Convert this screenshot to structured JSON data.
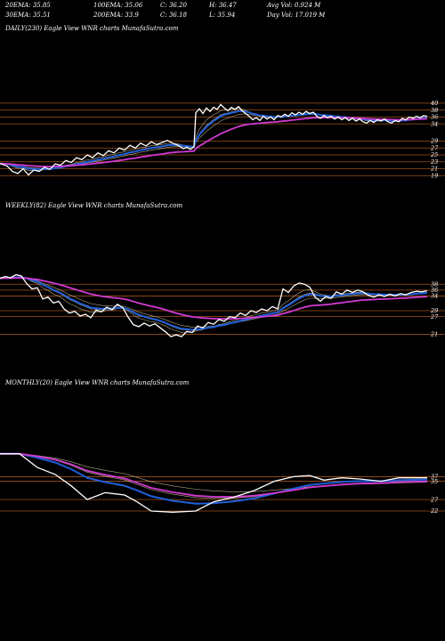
{
  "header": {
    "row1": [
      "20EMA: 35.85",
      "100EMA: 35.06",
      "C: 36.20",
      "H: 36.47",
      "Avg Vol: 0.924  M"
    ],
    "row2": [
      "30EMA: 35.51",
      "200EMA: 33.9",
      "C: 36.18",
      "L: 35.94",
      "Day Vol: 17.019 M"
    ]
  },
  "chart_data": [
    {
      "type": "line",
      "title": "DAILY(230) Eagle   View  WNR charts MunafaSutra.com",
      "y_axis_labels": [
        "40",
        "38",
        "36",
        "34",
        "29",
        "27",
        "25",
        "23",
        "21",
        "19"
      ],
      "ylim": [
        17,
        41
      ],
      "price": [
        [
          0,
          22.5
        ],
        [
          8,
          21.8
        ],
        [
          14,
          20.2
        ],
        [
          20,
          19.6
        ],
        [
          26,
          21.0
        ],
        [
          32,
          19.2
        ],
        [
          38,
          20.6
        ],
        [
          44,
          20.2
        ],
        [
          50,
          21.4
        ],
        [
          56,
          20.8
        ],
        [
          62,
          22.4
        ],
        [
          68,
          22.0
        ],
        [
          74,
          23.4
        ],
        [
          80,
          22.8
        ],
        [
          86,
          24.2
        ],
        [
          92,
          23.6
        ],
        [
          98,
          25.0
        ],
        [
          104,
          24.2
        ],
        [
          110,
          25.6
        ],
        [
          116,
          24.8
        ],
        [
          122,
          26.2
        ],
        [
          128,
          25.6
        ],
        [
          134,
          27.0
        ],
        [
          140,
          26.4
        ],
        [
          146,
          27.8
        ],
        [
          152,
          27.0
        ],
        [
          158,
          28.4
        ],
        [
          164,
          27.6
        ],
        [
          170,
          28.8
        ],
        [
          176,
          28.0
        ],
        [
          182,
          28.6
        ],
        [
          188,
          29.2
        ],
        [
          194,
          28.4
        ],
        [
          200,
          27.8
        ],
        [
          206,
          26.8
        ],
        [
          210,
          27.2
        ],
        [
          214,
          26.6
        ],
        [
          218,
          27.4
        ],
        [
          220,
          37.2
        ],
        [
          224,
          38.4
        ],
        [
          228,
          37.0
        ],
        [
          232,
          38.6
        ],
        [
          236,
          37.6
        ],
        [
          240,
          38.8
        ],
        [
          244,
          38.2
        ],
        [
          248,
          39.6
        ],
        [
          252,
          38.6
        ],
        [
          256,
          37.8
        ],
        [
          260,
          38.8
        ],
        [
          264,
          38.2
        ],
        [
          268,
          39.0
        ],
        [
          272,
          37.8
        ],
        [
          276,
          37.0
        ],
        [
          280,
          36.2
        ],
        [
          284,
          35.2
        ],
        [
          288,
          35.8
        ],
        [
          292,
          35.0
        ],
        [
          296,
          36.2
        ],
        [
          300,
          35.4
        ],
        [
          304,
          36.0
        ],
        [
          308,
          35.2
        ],
        [
          312,
          36.4
        ],
        [
          316,
          36.0
        ],
        [
          320,
          36.8
        ],
        [
          324,
          36.2
        ],
        [
          328,
          37.2
        ],
        [
          332,
          36.6
        ],
        [
          336,
          37.4
        ],
        [
          340,
          36.8
        ],
        [
          344,
          37.6
        ],
        [
          348,
          37.0
        ],
        [
          352,
          37.4
        ],
        [
          356,
          36.2
        ],
        [
          360,
          35.6
        ],
        [
          364,
          36.4
        ],
        [
          368,
          35.8
        ],
        [
          372,
          36.2
        ],
        [
          376,
          35.4
        ],
        [
          380,
          36.0
        ],
        [
          384,
          35.2
        ],
        [
          388,
          35.8
        ],
        [
          392,
          35.0
        ],
        [
          396,
          35.6
        ],
        [
          400,
          34.8
        ],
        [
          404,
          35.4
        ],
        [
          408,
          34.6
        ],
        [
          412,
          34.2
        ],
        [
          416,
          35.0
        ],
        [
          420,
          34.4
        ],
        [
          424,
          35.2
        ],
        [
          428,
          34.8
        ],
        [
          432,
          35.4
        ],
        [
          436,
          34.6
        ],
        [
          440,
          34.2
        ],
        [
          444,
          35.0
        ],
        [
          448,
          34.6
        ],
        [
          452,
          35.6
        ],
        [
          456,
          35.2
        ],
        [
          460,
          36.0
        ],
        [
          464,
          35.6
        ],
        [
          468,
          36.2
        ],
        [
          472,
          35.8
        ],
        [
          476,
          36.4
        ],
        [
          480,
          36.2
        ]
      ]
    },
    {
      "type": "line",
      "title": "WEEKLY(82) Eagle   View  WNR charts MunafaSutra.com",
      "y_axis_labels": [
        "38",
        "36",
        "34",
        "29",
        "27",
        "21"
      ],
      "ylim": [
        16,
        42
      ],
      "price": [
        [
          0,
          40.0
        ],
        [
          6,
          40.6
        ],
        [
          12,
          40.2
        ],
        [
          18,
          41.2
        ],
        [
          24,
          40.8
        ],
        [
          30,
          38.2
        ],
        [
          36,
          36.4
        ],
        [
          42,
          36.8
        ],
        [
          48,
          33.0
        ],
        [
          54,
          33.6
        ],
        [
          60,
          31.6
        ],
        [
          66,
          32.2
        ],
        [
          72,
          29.6
        ],
        [
          78,
          28.2
        ],
        [
          84,
          28.8
        ],
        [
          90,
          27.2
        ],
        [
          96,
          27.8
        ],
        [
          102,
          26.6
        ],
        [
          108,
          29.2
        ],
        [
          114,
          28.6
        ],
        [
          120,
          30.2
        ],
        [
          126,
          29.4
        ],
        [
          132,
          31.2
        ],
        [
          138,
          30.0
        ],
        [
          144,
          26.8
        ],
        [
          150,
          24.2
        ],
        [
          156,
          23.6
        ],
        [
          162,
          24.8
        ],
        [
          168,
          23.8
        ],
        [
          174,
          24.6
        ],
        [
          180,
          23.2
        ],
        [
          186,
          21.8
        ],
        [
          192,
          20.2
        ],
        [
          198,
          20.8
        ],
        [
          204,
          20.2
        ],
        [
          210,
          22.0
        ],
        [
          216,
          21.6
        ],
        [
          222,
          23.8
        ],
        [
          228,
          23.2
        ],
        [
          234,
          25.0
        ],
        [
          240,
          24.4
        ],
        [
          246,
          26.0
        ],
        [
          252,
          25.4
        ],
        [
          258,
          27.0
        ],
        [
          264,
          26.6
        ],
        [
          270,
          28.2
        ],
        [
          276,
          27.4
        ],
        [
          282,
          29.0
        ],
        [
          288,
          28.4
        ],
        [
          294,
          29.6
        ],
        [
          300,
          29.0
        ],
        [
          306,
          30.4
        ],
        [
          312,
          29.6
        ],
        [
          318,
          36.4
        ],
        [
          324,
          35.2
        ],
        [
          330,
          37.4
        ],
        [
          336,
          38.4
        ],
        [
          342,
          38.0
        ],
        [
          348,
          37.0
        ],
        [
          354,
          33.6
        ],
        [
          360,
          32.2
        ],
        [
          366,
          33.8
        ],
        [
          372,
          33.2
        ],
        [
          378,
          35.4
        ],
        [
          384,
          34.6
        ],
        [
          390,
          36.0
        ],
        [
          396,
          35.2
        ],
        [
          402,
          36.0
        ],
        [
          408,
          35.4
        ],
        [
          414,
          34.2
        ],
        [
          420,
          33.6
        ],
        [
          426,
          34.4
        ],
        [
          432,
          33.8
        ],
        [
          438,
          34.6
        ],
        [
          444,
          34.0
        ],
        [
          450,
          34.8
        ],
        [
          456,
          34.4
        ],
        [
          462,
          35.2
        ],
        [
          468,
          35.6
        ],
        [
          474,
          35.4
        ],
        [
          480,
          35.8
        ]
      ]
    },
    {
      "type": "line",
      "title": "MONTHLY(20) Eagle   View  WNR charts MunafaSutra.com",
      "y_axis_labels": [
        "37",
        "35",
        "27",
        "22"
      ],
      "ylim": [
        15,
        50
      ],
      "price": [
        [
          0,
          47.0
        ],
        [
          22,
          47.0
        ],
        [
          42,
          41.0
        ],
        [
          62,
          38.0
        ],
        [
          80,
          33.0
        ],
        [
          98,
          27.0
        ],
        [
          118,
          30.0
        ],
        [
          140,
          29.0
        ],
        [
          154,
          26.0
        ],
        [
          170,
          22.0
        ],
        [
          194,
          21.5
        ],
        [
          220,
          22.0
        ],
        [
          240,
          26.0
        ],
        [
          262,
          28.0
        ],
        [
          286,
          31.0
        ],
        [
          308,
          35.0
        ],
        [
          330,
          37.0
        ],
        [
          348,
          37.5
        ],
        [
          364,
          35.5
        ],
        [
          384,
          36.5
        ],
        [
          404,
          36.0
        ],
        [
          428,
          35.0
        ],
        [
          448,
          36.5
        ],
        [
          480,
          36.5
        ]
      ]
    }
  ],
  "colors": {
    "background": "#000000",
    "price": "#ffffff",
    "ema_blue": "#1f5fd8",
    "ema_magenta": "#d23ad2",
    "level_lines": "#a0521d",
    "ma_thin": "#d8c8a0"
  }
}
